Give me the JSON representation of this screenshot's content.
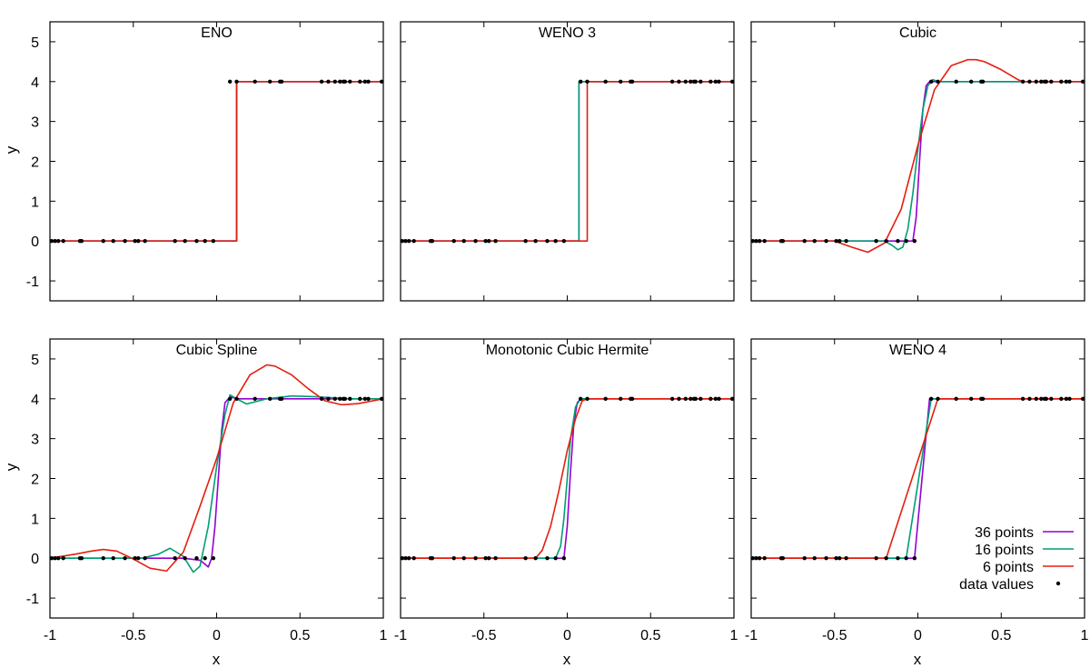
{
  "figure": {
    "xlabel": "x",
    "ylabel": "y",
    "legend": {
      "entries": [
        {
          "label": "36 points",
          "color": "#9400d3",
          "kind": "line"
        },
        {
          "label": "16 points",
          "color": "#009e73",
          "kind": "line"
        },
        {
          "label": "6 points",
          "color": "#e51e10",
          "kind": "line"
        },
        {
          "label": "data values",
          "color": "#000000",
          "kind": "dot"
        }
      ]
    }
  },
  "chart_data": {
    "type": "line",
    "layout": "2x3 grid of subplots",
    "xlim": [
      -1,
      1
    ],
    "ylim": [
      -1.5,
      5.5
    ],
    "xticks": [
      -1,
      -0.5,
      0,
      0.5,
      1
    ],
    "xtick_labels": [
      "-1",
      "-0.5",
      "0",
      "0.5",
      "1"
    ],
    "yticks": [
      -1,
      0,
      1,
      2,
      3,
      4,
      5
    ],
    "ytick_labels": [
      "-1",
      "0",
      "1",
      "2",
      "3",
      "4",
      "5"
    ],
    "data_values": {
      "x": [
        -0.99,
        -0.97,
        -0.95,
        -0.92,
        -0.82,
        -0.81,
        -0.68,
        -0.62,
        -0.55,
        -0.49,
        -0.47,
        -0.43,
        -0.25,
        -0.19,
        -0.12,
        -0.07,
        -0.02,
        0.08,
        0.12,
        0.23,
        0.32,
        0.38,
        0.39,
        0.63,
        0.67,
        0.71,
        0.74,
        0.76,
        0.77,
        0.8,
        0.86,
        0.89,
        0.91,
        0.99
      ],
      "y": [
        0,
        0,
        0,
        0,
        0,
        0,
        0,
        0,
        0,
        0,
        0,
        0,
        0,
        0,
        0,
        0,
        0,
        4,
        4,
        4,
        4,
        4,
        4,
        4,
        4,
        4,
        4,
        4,
        4,
        4,
        4,
        4,
        4,
        4
      ]
    },
    "subplots": [
      {
        "title": "ENO",
        "series": [
          {
            "name": "36 points",
            "x": [
              -1,
              0.12,
              0.12,
              1
            ],
            "y": [
              0,
              0,
              4,
              4
            ],
            "note": "curves coincide"
          },
          {
            "name": "16 points",
            "x": [
              -1,
              0.12,
              0.12,
              1
            ],
            "y": [
              0,
              0,
              4,
              4
            ]
          },
          {
            "name": "6 points",
            "x": [
              -1,
              0.12,
              0.12,
              1
            ],
            "y": [
              0,
              0,
              4,
              4
            ]
          }
        ]
      },
      {
        "title": "WENO 3",
        "series": [
          {
            "name": "36 points",
            "x": [
              -1,
              0.07,
              0.07,
              1
            ],
            "y": [
              0,
              0,
              4,
              4
            ]
          },
          {
            "name": "16 points",
            "x": [
              -1,
              0.07,
              0.07,
              1
            ],
            "y": [
              0,
              0,
              4,
              4
            ]
          },
          {
            "name": "6 points",
            "x": [
              -1,
              0.12,
              0.12,
              1
            ],
            "y": [
              0,
              0,
              4,
              4
            ]
          }
        ]
      },
      {
        "title": "Cubic",
        "series": [
          {
            "name": "36 points",
            "x": [
              -1,
              -0.03,
              -0.01,
              0.01,
              0.03,
              0.05,
              0.07,
              1
            ],
            "y": [
              0,
              0,
              0.6,
              2.0,
              3.3,
              3.9,
              4,
              4
            ]
          },
          {
            "name": "16 points",
            "x": [
              -1,
              -0.2,
              -0.15,
              -0.12,
              -0.09,
              -0.06,
              -0.03,
              0,
              0.03,
              0.06,
              0.09,
              0.12,
              1
            ],
            "y": [
              0,
              0,
              -0.12,
              -0.22,
              -0.15,
              0.3,
              1.2,
              2.3,
              3.3,
              3.9,
              4.05,
              4,
              4
            ]
          },
          {
            "name": "6 points",
            "x": [
              -1,
              -0.5,
              -0.4,
              -0.3,
              -0.2,
              -0.1,
              0,
              0.1,
              0.2,
              0.3,
              0.35,
              0.4,
              0.5,
              0.6,
              0.63,
              1
            ],
            "y": [
              0,
              0,
              -0.15,
              -0.28,
              -0.05,
              0.8,
              2.4,
              3.8,
              4.4,
              4.55,
              4.55,
              4.5,
              4.3,
              4.05,
              4,
              4
            ]
          }
        ]
      },
      {
        "title": "Cubic Spline",
        "series": [
          {
            "name": "36 points",
            "x": [
              -1,
              -0.2,
              -0.1,
              -0.07,
              -0.05,
              -0.03,
              -0.01,
              0.01,
              0.03,
              0.05,
              0.08,
              0.12,
              1
            ],
            "y": [
              0,
              0,
              -0.05,
              -0.15,
              -0.22,
              0.0,
              0.8,
              2.0,
              3.2,
              3.9,
              4.05,
              4,
              4
            ]
          },
          {
            "name": "16 points",
            "x": [
              -1,
              -0.45,
              -0.35,
              -0.28,
              -0.2,
              -0.14,
              -0.1,
              -0.05,
              0,
              0.05,
              0.08,
              0.12,
              0.18,
              0.3,
              0.45,
              0.6,
              0.8,
              1
            ],
            "y": [
              0,
              0,
              0.1,
              0.25,
              0.05,
              -0.35,
              -0.2,
              0.8,
              2.3,
              3.6,
              4.1,
              4.0,
              3.87,
              4.0,
              4.07,
              4.05,
              4.0,
              4.0
            ]
          },
          {
            "name": "6 points",
            "x": [
              -1,
              -0.85,
              -0.75,
              -0.68,
              -0.6,
              -0.5,
              -0.4,
              -0.3,
              -0.2,
              -0.1,
              0,
              0.1,
              0.2,
              0.3,
              0.35,
              0.45,
              0.55,
              0.65,
              0.75,
              0.85,
              1
            ],
            "y": [
              0,
              0.1,
              0.18,
              0.22,
              0.18,
              -0.02,
              -0.25,
              -0.32,
              0.15,
              1.3,
              2.5,
              3.9,
              4.6,
              4.85,
              4.82,
              4.6,
              4.25,
              3.95,
              3.85,
              3.88,
              4.0
            ]
          }
        ]
      },
      {
        "title": "Monotonic Cubic Hermite",
        "series": [
          {
            "name": "36 points",
            "x": [
              -1,
              -0.02,
              0,
              0.02,
              0.04,
              0.06,
              0.08,
              1
            ],
            "y": [
              0,
              0,
              0.8,
              2.2,
              3.4,
              3.9,
              4,
              4
            ]
          },
          {
            "name": "16 points",
            "x": [
              -1,
              -0.07,
              -0.04,
              -0.02,
              0,
              0.02,
              0.05,
              0.08,
              1
            ],
            "y": [
              0,
              0,
              0.3,
              1.0,
              2.0,
              3.0,
              3.8,
              4,
              4
            ]
          },
          {
            "name": "6 points",
            "x": [
              -1,
              -0.19,
              -0.15,
              -0.1,
              -0.05,
              0,
              0.05,
              0.09,
              0.12,
              1
            ],
            "y": [
              0,
              0,
              0.2,
              0.8,
              1.7,
              2.7,
              3.5,
              3.95,
              4,
              4
            ]
          }
        ]
      },
      {
        "title": "WENO 4",
        "series": [
          {
            "name": "36 points",
            "x": [
              -1,
              -0.02,
              0.07,
              1
            ],
            "y": [
              0,
              0,
              4,
              4
            ]
          },
          {
            "name": "16 points",
            "x": [
              -1,
              -0.07,
              0.08,
              1
            ],
            "y": [
              0,
              0,
              4,
              4
            ]
          },
          {
            "name": "6 points",
            "x": [
              -1,
              -0.19,
              0.12,
              1
            ],
            "y": [
              0,
              0,
              4,
              4
            ]
          }
        ]
      }
    ]
  }
}
